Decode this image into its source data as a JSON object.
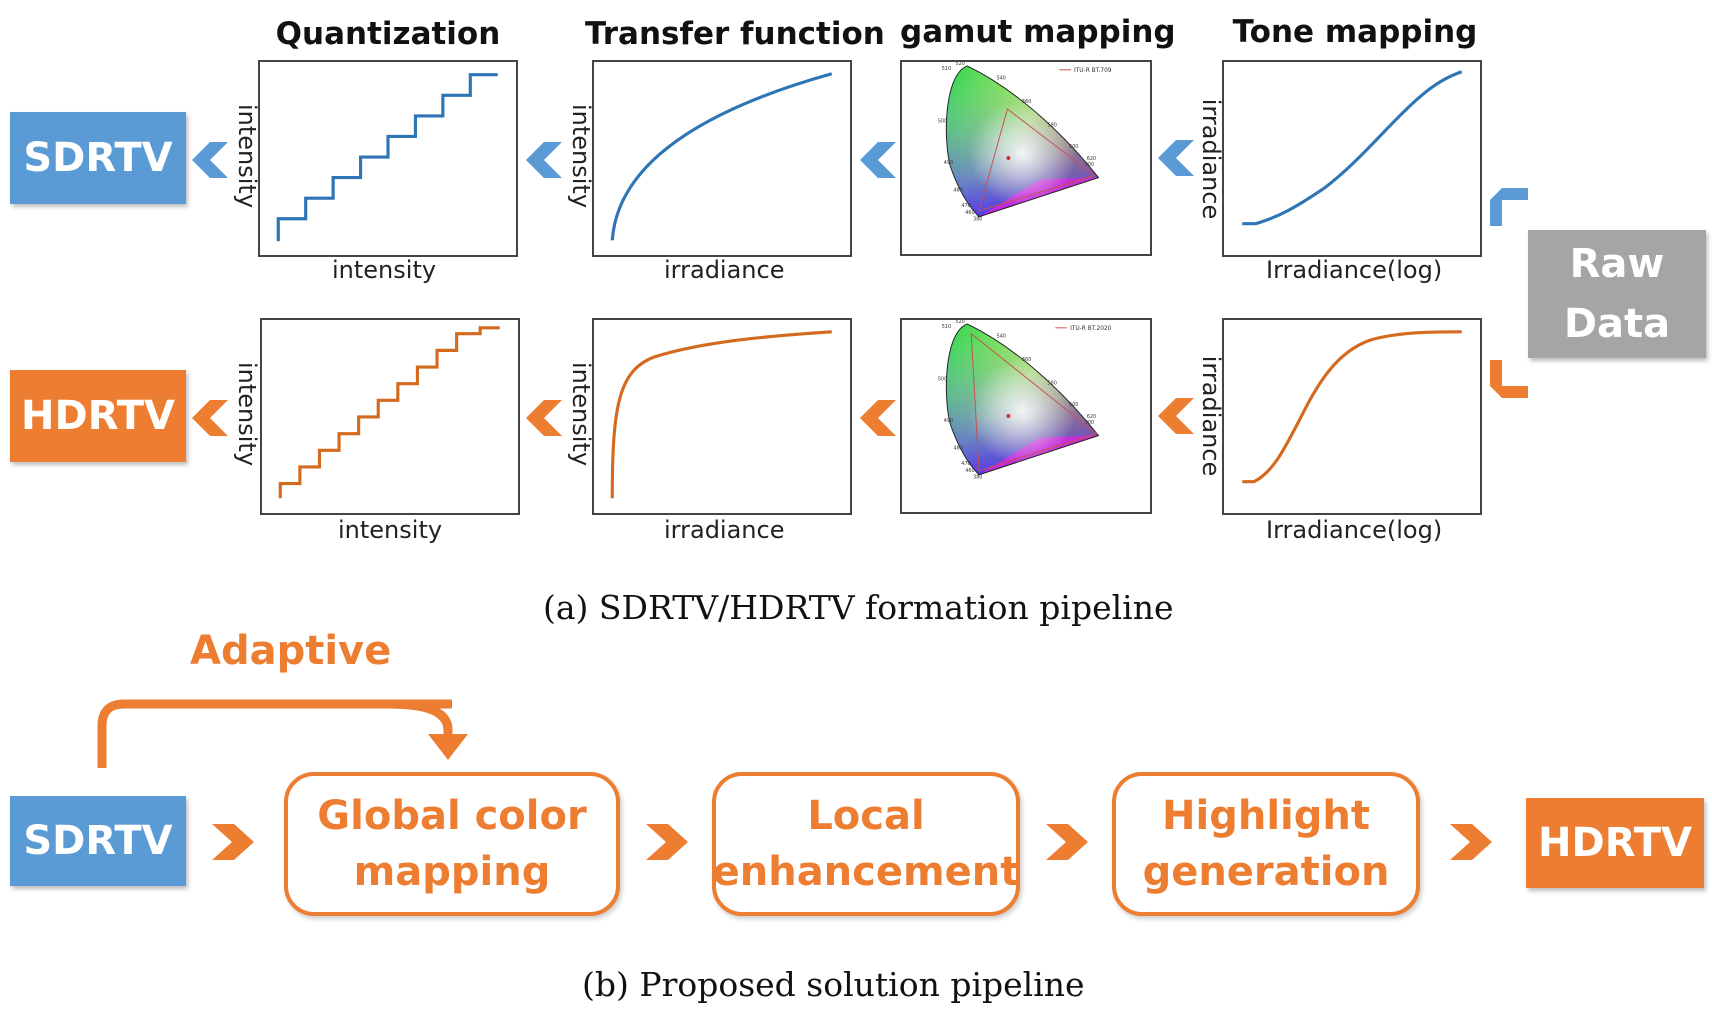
{
  "figure_a": {
    "caption": "(a) SDRTV/HDRTV formation pipeline",
    "column_titles": [
      "Quantization",
      "Transfer function",
      "gamut mapping",
      "Tone mapping"
    ],
    "source_label_line1": "Raw",
    "source_label_line2": "Data",
    "rows": [
      {
        "output_label": "SDRTV",
        "color": "#2e75b6",
        "quantization": {
          "xlabel": "intensity",
          "ylabel": "intensity"
        },
        "transfer": {
          "xlabel": "irradiance",
          "ylabel": "intensity"
        },
        "gamut": {
          "legend": "ITU-R BT.709"
        },
        "tone": {
          "xlabel": "Irradiance(log)",
          "ylabel": "irradiance"
        }
      },
      {
        "output_label": "HDRTV",
        "color": "#d46a1f",
        "quantization": {
          "xlabel": "intensity",
          "ylabel": "intensity"
        },
        "transfer": {
          "xlabel": "irradiance",
          "ylabel": "intensity"
        },
        "gamut": {
          "legend": "ITU-R BT.2020"
        },
        "tone": {
          "xlabel": "Irradiance(log)",
          "ylabel": "irradiance"
        }
      }
    ],
    "cie_wavelength_labels": [
      "520",
      "540",
      "560",
      "580",
      "600",
      "620",
      "700",
      "510",
      "500",
      "490",
      "480",
      "470",
      "460",
      "380"
    ]
  },
  "figure_b": {
    "caption": "(b) Proposed solution pipeline",
    "adaptive_label": "Adaptive",
    "input_label": "SDRTV",
    "output_label": "HDRTV",
    "stages": [
      {
        "line1": "Global color",
        "line2": "mapping"
      },
      {
        "line1": "Local",
        "line2": "enhancement"
      },
      {
        "line1": "Highlight",
        "line2": "generation"
      }
    ]
  },
  "colors": {
    "blue": "#5b9bd5",
    "orange": "#ed7d31",
    "gray": "#a5a5a5"
  }
}
